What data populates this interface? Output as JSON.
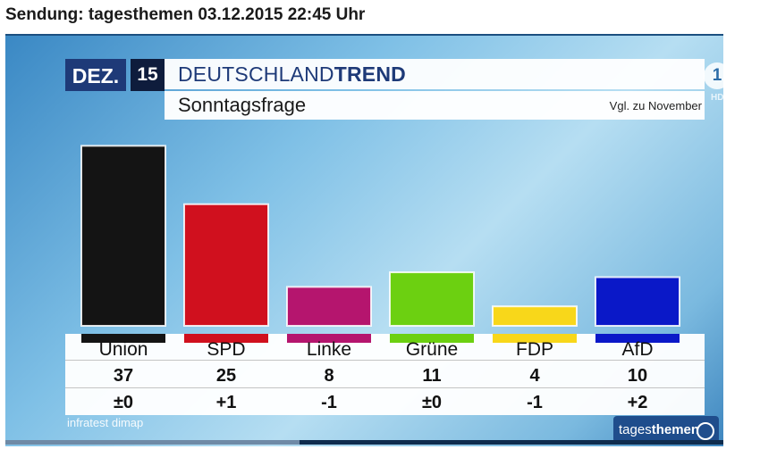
{
  "header": {
    "title": "Sendung: tagesthemen 03.12.2015 22:45 Uhr"
  },
  "graphic": {
    "month": "DEZ.",
    "year": "15",
    "brand_part1": "DEUTSCHLAND",
    "brand_part2": "TREND",
    "subtitle": "Sonntagsfrage",
    "comparison_note": "Vgl. zu November",
    "channel_logo": "1",
    "hd_label": "HD",
    "source": "infratest dimap",
    "show_logo_part1": "tages",
    "show_logo_part2": "themen"
  },
  "chart_data": {
    "type": "bar",
    "title": "Sonntagsfrage",
    "categories": [
      "Union",
      "SPD",
      "Linke",
      "Grüne",
      "FDP",
      "AfD"
    ],
    "values": [
      37,
      25,
      8,
      11,
      4,
      10
    ],
    "changes": [
      "±0",
      "+1",
      "-1",
      "±0",
      "-1",
      "+2"
    ],
    "colors": [
      "#141414",
      "#d0101e",
      "#b5156e",
      "#6cd011",
      "#f8d71a",
      "#0a18c8"
    ],
    "ylim": [
      0,
      40
    ],
    "xlabel": "",
    "ylabel": ""
  },
  "player": {
    "progress_pct": 41
  }
}
